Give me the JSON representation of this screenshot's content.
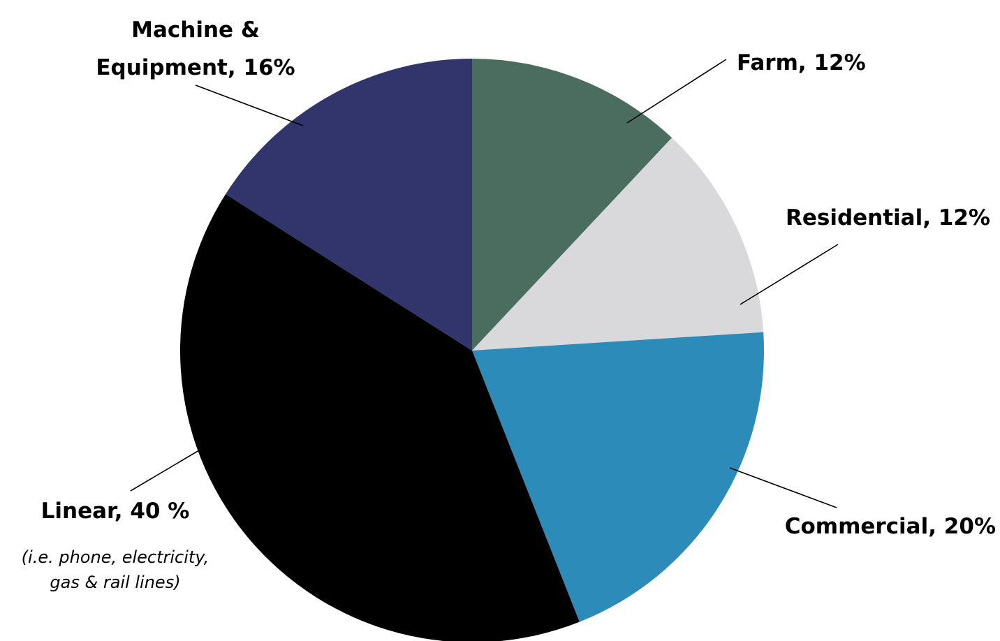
{
  "chart_data": {
    "type": "pie",
    "title": "",
    "start_angle": "12 o'clock",
    "direction": "clockwise",
    "slices": [
      {
        "name": "Farm",
        "value": 12,
        "label_lines": [
          "Farm, 12%"
        ],
        "note_lines": [],
        "color": "#4a6d5f"
      },
      {
        "name": "Residential",
        "value": 12,
        "label_lines": [
          "Residential, 12%"
        ],
        "note_lines": [],
        "color": "#d9d9db"
      },
      {
        "name": "Commercial",
        "value": 20,
        "label_lines": [
          "Commercial, 20%"
        ],
        "note_lines": [],
        "color": "#2d8bb9"
      },
      {
        "name": "Linear",
        "value": 40,
        "label_lines": [
          "Linear, 40 %"
        ],
        "note_lines": [
          "(i.e. phone, electricity,",
          "gas & rail lines)"
        ],
        "color": "#000000"
      },
      {
        "name": "Machine & Equipment",
        "value": 16,
        "label_lines": [
          "Machine &",
          "Equipment, 16%"
        ],
        "note_lines": [],
        "color": "#32356b"
      }
    ]
  }
}
